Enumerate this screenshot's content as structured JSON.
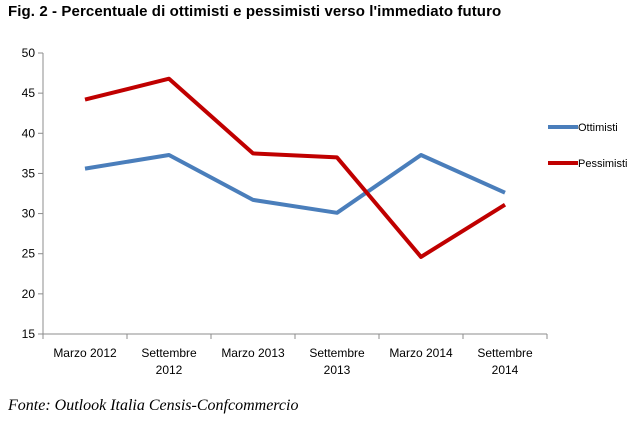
{
  "figure": {
    "title": "Fig. 2 - Percentuale di ottimisti e pessimisti verso l'immediato futuro",
    "source": "Fonte: Outlook Italia Censis-Confcommercio"
  },
  "chart_data": {
    "type": "line",
    "title": "",
    "xlabel": "",
    "ylabel": "",
    "categories": [
      [
        "Marzo 2012"
      ],
      [
        "Settembre",
        "2012"
      ],
      [
        "Marzo 2013"
      ],
      [
        "Settembre",
        "2013"
      ],
      [
        "Marzo 2014"
      ],
      [
        "Settembre",
        "2014"
      ]
    ],
    "series": [
      {
        "name": "Ottimisti",
        "color": "#4A7EBB",
        "values": [
          35.6,
          37.3,
          31.7,
          30.1,
          37.3,
          32.6
        ]
      },
      {
        "name": "Pessimisti",
        "color": "#C00000",
        "values": [
          44.2,
          46.8,
          37.5,
          37.0,
          24.6,
          31.1
        ]
      }
    ],
    "ylim": [
      15,
      50
    ],
    "yticks": [
      15,
      20,
      25,
      30,
      35,
      40,
      45,
      50
    ],
    "grid": false,
    "legend_position": "right"
  }
}
